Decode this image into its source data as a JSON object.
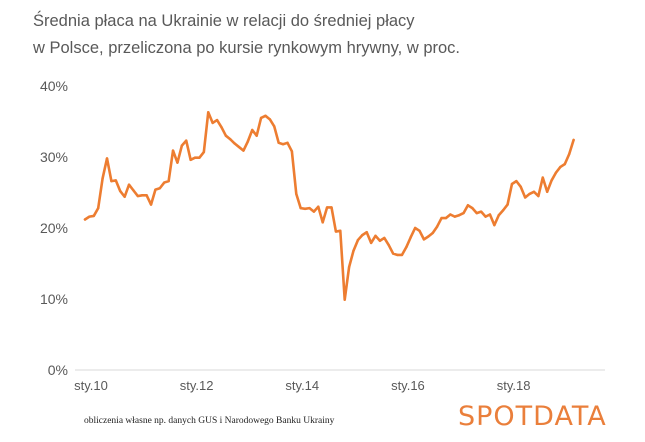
{
  "title_line1": "Średnia płaca na Ukrainie w relacji do średniej płacy",
  "title_line2": "w Polsce,  przeliczona  po kursie rynkowym hrywny, w proc.",
  "source_note": "obliczenia własne np. danych GUS i Narodowego Banku Ukrainy",
  "brand_name": "SPOTDATA",
  "colors": {
    "line": "#ed7d31",
    "brand": "#ea7f3b",
    "axis": "#d9d9d9",
    "text": "#595959"
  },
  "chart_data": {
    "type": "line",
    "title": "Średnia płaca na Ukrainie w relacji do średniej płacy w Polsce,  przeliczona  po kursie rynkowym hrywny, w proc.",
    "xlabel": "",
    "ylabel": "",
    "x_ticks": [
      "sty.10",
      "sty.12",
      "sty.14",
      "sty.16",
      "sty.18"
    ],
    "y_ticks": [
      "0%",
      "10%",
      "20%",
      "30%",
      "40%"
    ],
    "ylim": [
      0,
      40
    ],
    "grid": false,
    "legend": "none",
    "x_start": "2010-01",
    "x_end": "2019-09",
    "series": [
      {
        "values": [
          21.2,
          21.6,
          21.7,
          22.8,
          27.0,
          29.8,
          26.6,
          26.7,
          25.2,
          24.4,
          26.1,
          25.3,
          24.5,
          24.6,
          24.6,
          23.3,
          25.4,
          25.6,
          26.4,
          26.6,
          30.9,
          29.2,
          31.6,
          32.3,
          29.6,
          29.9,
          29.9,
          30.7,
          36.3,
          34.8,
          35.2,
          34.2,
          33.0,
          32.5,
          31.9,
          31.4,
          30.9,
          32.2,
          33.8,
          33.0,
          35.5,
          35.8,
          35.3,
          34.3,
          32.0,
          31.8,
          32.0,
          30.8,
          24.8,
          22.8,
          22.7,
          22.8,
          22.3,
          23.0,
          20.8,
          22.9,
          22.9,
          19.5,
          19.6,
          9.9,
          14.5,
          16.8,
          18.3,
          19.0,
          19.4,
          17.9,
          18.9,
          18.2,
          18.6,
          17.6,
          16.4,
          16.2,
          16.2,
          17.3,
          18.7,
          20.0,
          19.6,
          18.4,
          18.8,
          19.3,
          20.2,
          21.4,
          21.4,
          21.9,
          21.6,
          21.8,
          22.1,
          23.2,
          22.8,
          22.1,
          22.3,
          21.6,
          21.9,
          20.4,
          21.8,
          22.5,
          23.3,
          26.2,
          26.6,
          25.8,
          24.3,
          24.8,
          25.1,
          24.5,
          27.1,
          25.1,
          26.7,
          27.8,
          28.6,
          29.0,
          30.4,
          32.4
        ]
      }
    ]
  }
}
